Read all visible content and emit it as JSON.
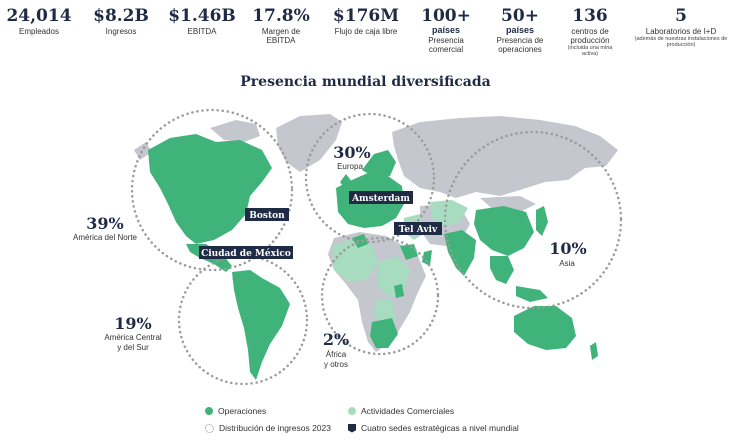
{
  "stats": [
    {
      "value": "24,014",
      "label": "Empleados"
    },
    {
      "value": "$8.2B",
      "label": "Ingresos"
    },
    {
      "value": "$1.46B",
      "label": "EBITDA"
    },
    {
      "value": "17.8%",
      "label": "Margen de EBITDA"
    },
    {
      "value": "$176M",
      "label": "Flujo de caja libre"
    },
    {
      "value": "100+",
      "sub": "países",
      "label": "Presencia comercial"
    },
    {
      "value": "50+",
      "sub": "países",
      "label": "Presencia de operaciones"
    },
    {
      "value": "136",
      "label": "centros de producción",
      "note": "(incluida una mina activa)"
    },
    {
      "value": "5",
      "label": "Laboratorios de I+D",
      "note": "(además de nuestras instalaciones de producción)"
    }
  ],
  "title": "Presencia mundial diversificada",
  "regions": {
    "north_america": {
      "pct": "39%",
      "label": "América del Norte"
    },
    "europe": {
      "pct": "30%",
      "label": "Europa"
    },
    "asia": {
      "pct": "10%",
      "label": "Asia"
    },
    "latam": {
      "pct": "19%",
      "label_1": "América Central",
      "label_2": "y del Sur"
    },
    "africa": {
      "pct": "2%",
      "label_1": "África",
      "label_2": "y otros"
    }
  },
  "cities": {
    "boston": "Boston",
    "mexico": "Ciudad de México",
    "amsterdam": "Amsterdam",
    "telaviv": "Tel Aviv"
  },
  "legend": {
    "operations": "Operaciones",
    "commercial": "Actividades Comerciales",
    "revenue": "Distribución de ingresos 2023",
    "hq": "Cuatro sedes estratégicas a nivel mundial"
  },
  "colors": {
    "operations": "#3fb37a",
    "commercial": "#a8dcc0",
    "land": "#c5c7ce",
    "navy": "#1f2a44"
  }
}
